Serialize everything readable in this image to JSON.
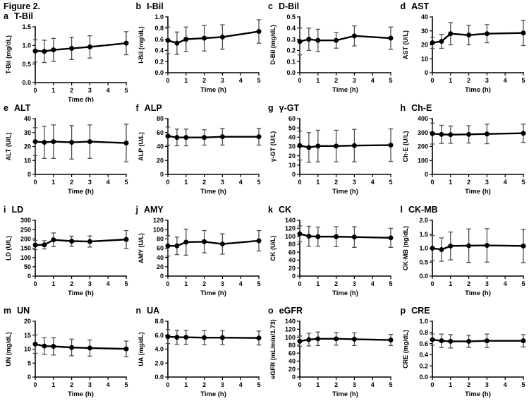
{
  "figure": {
    "title": "Figure 2."
  },
  "chart_data": [
    {
      "type": "line",
      "panel": "a",
      "title": "T-Bil",
      "ylabel": "T-Bil (mg/dL)",
      "xlabel": "Time (h)",
      "x": [
        0,
        0.5,
        1,
        2,
        3,
        5
      ],
      "values": [
        0.85,
        0.84,
        0.88,
        0.92,
        0.96,
        1.06
      ],
      "errors": [
        0.3,
        0.3,
        0.31,
        0.3,
        0.3,
        0.31
      ],
      "ylim": [
        0,
        1.5
      ],
      "ytick_step": 0.5,
      "ydecimals": 1,
      "xlim": [
        0,
        5
      ],
      "xticks": [
        0,
        1,
        2,
        3,
        4,
        5
      ]
    },
    {
      "type": "line",
      "panel": "b",
      "title": "I-Bil",
      "ylabel": "I-Bil (mg/dL)",
      "xlabel": "Time (h)",
      "x": [
        0,
        0.5,
        1,
        2,
        3,
        5
      ],
      "values": [
        0.58,
        0.53,
        0.6,
        0.62,
        0.64,
        0.74
      ],
      "errors": [
        0.24,
        0.2,
        0.22,
        0.23,
        0.22,
        0.21
      ],
      "ylim": [
        0,
        1.0
      ],
      "ytick_step": 0.2,
      "ydecimals": 1,
      "xlim": [
        0,
        5
      ],
      "xticks": [
        0,
        1,
        2,
        3,
        4,
        5
      ]
    },
    {
      "type": "line",
      "panel": "c",
      "title": "D-Bil",
      "ylabel": "D-Bil (mg/dL)",
      "xlabel": "Time (h)",
      "x": [
        0,
        0.5,
        1,
        2,
        3,
        5
      ],
      "values": [
        0.28,
        0.3,
        0.29,
        0.29,
        0.33,
        0.31
      ],
      "errors": [
        0.12,
        0.1,
        0.1,
        0.07,
        0.09,
        0.1
      ],
      "ylim": [
        0,
        0.5
      ],
      "ytick_step": 0.1,
      "ydecimals": 1,
      "xlim": [
        0,
        5
      ],
      "xticks": [
        0,
        1,
        2,
        3,
        4,
        5
      ]
    },
    {
      "type": "line",
      "panel": "d",
      "title": "AST",
      "ylabel": "AST (U/L)",
      "xlabel": "Time (h)",
      "x": [
        0,
        0.5,
        1,
        2,
        3,
        5
      ],
      "values": [
        21.5,
        22.5,
        28,
        27,
        28,
        28.5
      ],
      "errors": [
        4,
        5,
        8,
        7,
        6.5,
        9
      ],
      "ylim": [
        0,
        40
      ],
      "ytick_step": 10,
      "ydecimals": 0,
      "xlim": [
        0,
        5
      ],
      "xticks": [
        0,
        1,
        2,
        3,
        4,
        5
      ]
    },
    {
      "type": "line",
      "panel": "e",
      "title": "ALT",
      "ylabel": "ALT (U/L)",
      "xlabel": "Time (h)",
      "x": [
        0,
        0.5,
        1,
        2,
        3,
        5
      ],
      "values": [
        23.5,
        23,
        23.5,
        23,
        23.5,
        22.5
      ],
      "errors": [
        10,
        11.5,
        12,
        12,
        12,
        13.5
      ],
      "ylim": [
        0,
        40
      ],
      "ytick_step": 10,
      "ydecimals": 0,
      "xlim": [
        0,
        5
      ],
      "xticks": [
        0,
        1,
        2,
        3,
        4,
        5
      ]
    },
    {
      "type": "line",
      "panel": "f",
      "title": "ALP",
      "ylabel": "ALP (U/L)",
      "xlabel": "Time (h)",
      "x": [
        0,
        0.5,
        1,
        2,
        3,
        5
      ],
      "values": [
        55,
        53,
        53,
        53,
        54,
        54
      ],
      "errors": [
        13,
        12,
        12,
        11,
        12,
        12
      ],
      "ylim": [
        0,
        80
      ],
      "ytick_step": 20,
      "ydecimals": 0,
      "xlim": [
        0,
        5
      ],
      "xticks": [
        0,
        1,
        2,
        3,
        4,
        5
      ]
    },
    {
      "type": "line",
      "panel": "g",
      "title": "γ-GT",
      "ylabel": "γ-GT (U/L)",
      "xlabel": "Time (h)",
      "x": [
        0,
        0.5,
        1,
        2,
        3,
        5
      ],
      "values": [
        31,
        29,
        30.5,
        30.5,
        31,
        31.5
      ],
      "errors": [
        15.5,
        16,
        17,
        17,
        17.5,
        17.5
      ],
      "ylim": [
        0,
        60
      ],
      "ytick_step": 10,
      "ydecimals": 0,
      "xlim": [
        0,
        5
      ],
      "xticks": [
        0,
        1,
        2,
        3,
        4,
        5
      ]
    },
    {
      "type": "line",
      "panel": "h",
      "title": "Ch-E",
      "ylabel": "Ch-E (U/L)",
      "xlabel": "Time (h)",
      "x": [
        0,
        0.5,
        1,
        2,
        3,
        5
      ],
      "values": [
        293,
        287,
        285,
        287,
        290,
        295
      ],
      "errors": [
        75,
        65,
        62,
        62,
        70,
        65
      ],
      "ylim": [
        0,
        400
      ],
      "ytick_step": 100,
      "ydecimals": 0,
      "xlim": [
        0,
        5
      ],
      "xticks": [
        0,
        1,
        2,
        3,
        4,
        5
      ]
    },
    {
      "type": "line",
      "panel": "i",
      "title": "LD",
      "ylabel": "LD (U/L)",
      "xlabel": "Time (h)",
      "x": [
        0,
        0.5,
        1,
        2,
        3,
        5
      ],
      "values": [
        167,
        168,
        195,
        188,
        186,
        197
      ],
      "errors": [
        25,
        22,
        37,
        27,
        30,
        48
      ],
      "ylim": [
        0,
        300
      ],
      "ytick_step": 50,
      "ydecimals": 0,
      "xlim": [
        0,
        5
      ],
      "xticks": [
        0,
        1,
        2,
        3,
        4,
        5
      ]
    },
    {
      "type": "line",
      "panel": "j",
      "title": "AMY",
      "ylabel": "AMY (U/L)",
      "xlabel": "Time (h)",
      "x": [
        0,
        0.5,
        1,
        2,
        3,
        5
      ],
      "values": [
        65,
        65,
        73,
        74,
        69,
        76
      ],
      "errors": [
        22,
        19,
        28,
        24,
        22,
        22
      ],
      "ylim": [
        0,
        120
      ],
      "ytick_step": 20,
      "ydecimals": 0,
      "xlim": [
        0,
        5
      ],
      "xticks": [
        0,
        1,
        2,
        3,
        4,
        5
      ]
    },
    {
      "type": "line",
      "panel": "k",
      "title": "CK",
      "ylabel": "CK (U/L)",
      "xlabel": "Time (h)",
      "x": [
        0,
        0.5,
        1,
        2,
        3,
        5
      ],
      "values": [
        106,
        100,
        99,
        99,
        98,
        96
      ],
      "errors": [
        20,
        25,
        24,
        25,
        26,
        24
      ],
      "ylim": [
        0,
        140
      ],
      "ytick_step": 20,
      "ydecimals": 0,
      "xlim": [
        0,
        5
      ],
      "xticks": [
        0,
        1,
        2,
        3,
        4,
        5
      ]
    },
    {
      "type": "line",
      "panel": "l",
      "title": "CK-MB",
      "ylabel": "CK-MB (ng/dL)",
      "xlabel": "Time (h)",
      "x": [
        0,
        0.5,
        1,
        2,
        3,
        5
      ],
      "values": [
        1.0,
        0.95,
        1.08,
        1.09,
        1.1,
        1.08
      ],
      "errors": [
        0.45,
        0.42,
        0.5,
        0.6,
        0.6,
        0.6
      ],
      "ylim": [
        0,
        2.0
      ],
      "ytick_step": 0.5,
      "ydecimals": 1,
      "xlim": [
        0,
        5
      ],
      "xticks": [
        0,
        1,
        2,
        3,
        4,
        5
      ]
    },
    {
      "type": "line",
      "panel": "m",
      "title": "UN",
      "ylabel": "UN (mg/dL)",
      "xlabel": "Time (h)",
      "x": [
        0,
        0.5,
        1,
        2,
        3,
        5
      ],
      "values": [
        11.8,
        11.1,
        11.0,
        10.6,
        10.4,
        10.1
      ],
      "errors": [
        3.3,
        3.0,
        3.1,
        3.0,
        2.9,
        2.8
      ],
      "ylim": [
        0,
        20
      ],
      "ytick_step": 5,
      "ydecimals": 0,
      "xlim": [
        0,
        5
      ],
      "xticks": [
        0,
        1,
        2,
        3,
        4,
        5
      ]
    },
    {
      "type": "line",
      "panel": "n",
      "title": "UA",
      "ylabel": "UA (mg/dL)",
      "xlabel": "Time (h)",
      "x": [
        0,
        0.5,
        1,
        2,
        3,
        5
      ],
      "values": [
        5.8,
        5.7,
        5.7,
        5.65,
        5.65,
        5.6
      ],
      "errors": [
        1.0,
        1.0,
        1.0,
        1.0,
        1.0,
        1.0
      ],
      "ylim": [
        0,
        8.0
      ],
      "ytick_step": 2.0,
      "ydecimals": 1,
      "xlim": [
        0,
        5
      ],
      "xticks": [
        0,
        1,
        2,
        3,
        4,
        5
      ]
    },
    {
      "type": "line",
      "panel": "o",
      "title": "eGFR",
      "ylabel": "eGFR (mL/min/1.73)",
      "xlabel": "Time (h)",
      "x": [
        0,
        0.5,
        1,
        2,
        3,
        5
      ],
      "values": [
        90,
        94,
        96,
        96,
        95,
        93
      ],
      "errors": [
        13,
        16,
        17,
        16,
        16,
        14
      ],
      "ylim": [
        0,
        140
      ],
      "ytick_step": 20,
      "ydecimals": 0,
      "xlim": [
        0,
        5
      ],
      "xticks": [
        0,
        1,
        2,
        3,
        4,
        5
      ]
    },
    {
      "type": "line",
      "panel": "p",
      "title": "CRE",
      "ylabel": "CRE (mg/dL)",
      "xlabel": "Time (h)",
      "x": [
        0,
        0.5,
        1,
        2,
        3,
        5
      ],
      "values": [
        0.67,
        0.65,
        0.64,
        0.64,
        0.65,
        0.65
      ],
      "errors": [
        0.1,
        0.12,
        0.12,
        0.11,
        0.12,
        0.11
      ],
      "ylim": [
        0,
        1.0
      ],
      "ytick_step": 0.2,
      "ydecimals": 1,
      "xlim": [
        0,
        5
      ],
      "xticks": [
        0,
        1,
        2,
        3,
        4,
        5
      ]
    }
  ]
}
